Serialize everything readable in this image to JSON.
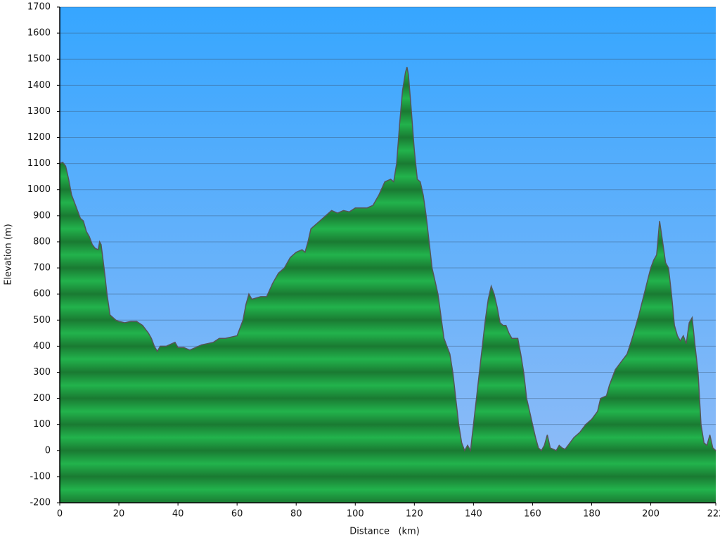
{
  "chart_data": {
    "type": "area",
    "x_label": "Distance   (km)",
    "y_label": "Elevation (m)",
    "xlim": [
      0,
      222
    ],
    "xticks": [
      0,
      20,
      40,
      60,
      80,
      100,
      120,
      140,
      160,
      180,
      200,
      222
    ],
    "ylim": [
      -200,
      1700
    ],
    "yticks": [
      -200,
      -100,
      0,
      100,
      200,
      300,
      400,
      500,
      600,
      700,
      800,
      900,
      1000,
      1100,
      1200,
      1300,
      1400,
      1500,
      1600,
      1700
    ],
    "grid": true,
    "sky_colors": [
      "#36a6ff",
      "#95bdf6"
    ],
    "stripe_colors": [
      "#1a7a32",
      "#22b34c"
    ],
    "line_color": "#555555",
    "x": [
      0,
      1,
      2,
      3,
      4,
      5,
      6,
      7,
      8,
      9,
      10,
      11,
      12,
      13,
      13.5,
      14,
      15,
      16,
      17,
      18,
      19,
      20,
      22,
      24,
      26,
      28,
      30,
      31,
      32,
      33,
      34,
      36,
      38,
      39,
      40,
      42,
      44,
      46,
      48,
      50,
      52,
      54,
      56,
      58,
      60,
      62,
      63,
      64,
      65,
      68,
      70,
      72,
      74,
      76,
      78,
      80,
      82,
      83,
      84,
      85,
      88,
      90,
      92,
      94,
      96,
      98,
      100,
      104,
      106,
      108,
      110,
      112,
      113,
      114,
      115,
      116,
      117,
      117.5,
      118,
      119,
      120,
      121,
      122,
      123,
      124,
      125,
      126,
      128,
      130,
      131,
      132,
      133,
      134,
      135,
      136,
      137,
      138,
      139,
      140,
      141,
      142,
      143,
      144,
      145,
      146,
      147,
      148,
      149,
      150,
      151,
      152,
      153,
      154,
      155,
      156,
      157,
      158,
      159,
      160,
      161,
      162,
      163,
      164,
      165,
      166,
      167,
      168,
      169,
      170,
      171,
      172,
      174,
      176,
      178,
      180,
      182,
      183,
      185,
      186,
      188,
      190,
      192,
      194,
      196,
      198,
      200,
      201,
      202,
      203,
      204,
      205,
      206,
      207,
      208,
      209,
      210,
      211,
      212,
      213,
      214,
      215,
      216,
      217,
      218,
      219,
      220,
      221,
      222
    ],
    "values": [
      1100,
      1105,
      1090,
      1040,
      980,
      950,
      920,
      890,
      880,
      840,
      820,
      790,
      775,
      770,
      800,
      790,
      700,
      600,
      520,
      510,
      500,
      495,
      490,
      495,
      495,
      480,
      450,
      430,
      400,
      380,
      400,
      400,
      410,
      415,
      395,
      395,
      385,
      395,
      405,
      410,
      415,
      430,
      430,
      435,
      440,
      500,
      560,
      600,
      580,
      590,
      590,
      640,
      680,
      700,
      740,
      760,
      770,
      760,
      800,
      850,
      880,
      900,
      920,
      910,
      920,
      915,
      930,
      930,
      940,
      980,
      1030,
      1040,
      1030,
      1100,
      1250,
      1380,
      1450,
      1470,
      1440,
      1300,
      1150,
      1040,
      1030,
      980,
      900,
      800,
      700,
      600,
      430,
      400,
      370,
      300,
      200,
      100,
      30,
      0,
      20,
      0,
      100,
      200,
      300,
      400,
      500,
      580,
      630,
      600,
      550,
      490,
      480,
      480,
      450,
      430,
      430,
      430,
      370,
      300,
      200,
      150,
      100,
      50,
      10,
      0,
      20,
      60,
      10,
      5,
      0,
      20,
      10,
      5,
      20,
      50,
      70,
      100,
      120,
      150,
      200,
      210,
      250,
      310,
      340,
      370,
      440,
      520,
      610,
      700,
      730,
      750,
      880,
      800,
      720,
      700,
      600,
      480,
      440,
      420,
      440,
      410,
      490,
      510,
      400,
      300,
      100,
      30,
      20,
      60,
      10,
      0
    ]
  }
}
